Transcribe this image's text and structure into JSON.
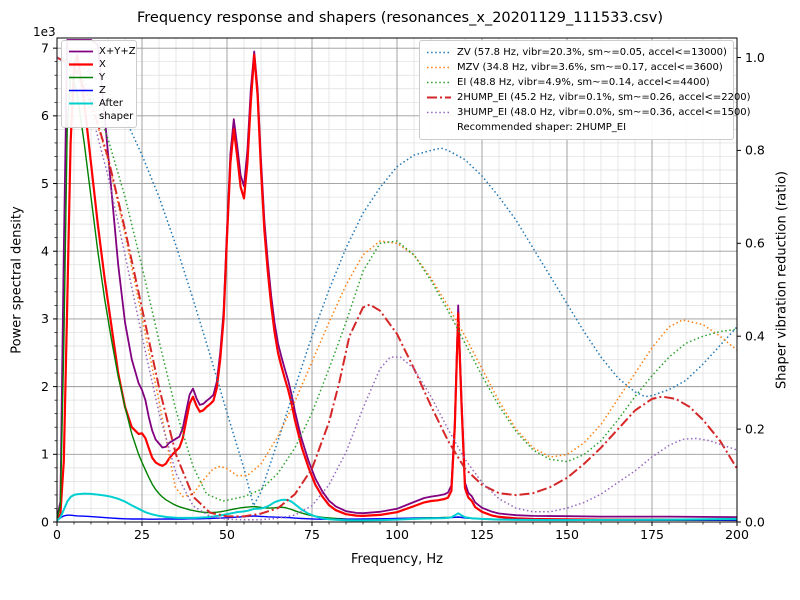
{
  "title": "Frequency response and shapers (resonances_x_20201129_111533.csv)",
  "axes": {
    "x": {
      "label": "Frequency, Hz"
    },
    "y_left": {
      "label": "Power spectral density",
      "offset_text": "1e3"
    },
    "y_right": {
      "label": "Shaper vibration reduction (ratio)"
    }
  },
  "legends": {
    "psd": {
      "entries": [
        {
          "label": "X+Y+Z",
          "series": "X+Y+Z"
        },
        {
          "label": "X",
          "series": "X"
        },
        {
          "label": "Y",
          "series": "Y"
        },
        {
          "label": "Z",
          "series": "Z"
        },
        {
          "label": "After shaper",
          "series": "After shaper"
        }
      ]
    },
    "shapers": {
      "entries": [
        {
          "label": "ZV (57.8 Hz, vibr=20.3%, sm~=0.05, accel<=13000)",
          "series": "ZV"
        },
        {
          "label": "MZV (34.8 Hz, vibr=3.6%, sm~=0.17, accel<=3600)",
          "series": "MZV"
        },
        {
          "label": "EI (48.8 Hz, vibr=4.9%, sm~=0.14, accel<=4400)",
          "series": "EI"
        },
        {
          "label": "2HUMP_EI (45.2 Hz, vibr=0.1%, sm~=0.26, accel<=2200)",
          "series": "2HUMP_EI"
        },
        {
          "label": "3HUMP_EI (48.0 Hz, vibr=0.0%, sm~=0.36, accel<=1500)",
          "series": "3HUMP_EI"
        }
      ],
      "note": "Recommended shaper: 2HUMP_EI"
    }
  },
  "chart_data": {
    "type": "line",
    "title": "Frequency response and shapers (resonances_x_20201129_111533.csv)",
    "xlabel": "Frequency, Hz",
    "ylabel_left": "Power spectral density",
    "ylabel_right": "Shaper vibration reduction (ratio)",
    "xlim": [
      0,
      200
    ],
    "ylim_left": [
      0,
      7150
    ],
    "ylim_right": [
      0,
      1.042
    ],
    "xticks": [
      0,
      25,
      50,
      75,
      100,
      125,
      150,
      175,
      200
    ],
    "xticklabels": [
      "0",
      "25",
      "50",
      "75",
      "100",
      "125",
      "150",
      "175",
      "200"
    ],
    "yticks_left": [
      0,
      1000,
      2000,
      3000,
      4000,
      5000,
      6000,
      7000
    ],
    "yticklabels_left": [
      "0",
      "1",
      "2",
      "3",
      "4",
      "5",
      "6",
      "7"
    ],
    "y_left_offset_text": "1e3",
    "yticks_right": [
      0,
      0.2,
      0.4,
      0.6,
      0.8,
      1.0
    ],
    "yticklabels_right": [
      "0.0",
      "0.2",
      "0.4",
      "0.6",
      "0.8",
      "1.0"
    ],
    "grid": {
      "major_color": "#999999",
      "minor_color": "#dddddd",
      "on": true
    },
    "minor": {
      "x_step": 5,
      "y_left_step": 200
    },
    "legend_positions": {
      "psd": "upper left",
      "shapers": "upper right"
    },
    "psd_x": [
      0,
      1,
      2,
      3,
      4,
      5,
      6,
      8,
      10,
      12,
      14,
      16,
      18,
      20,
      22,
      24,
      25,
      26,
      27,
      28,
      29,
      30,
      31,
      32,
      33,
      34,
      35,
      36,
      37,
      38,
      39,
      40,
      41,
      42,
      43,
      44,
      45,
      46,
      47,
      48,
      49,
      50,
      51,
      52,
      53,
      54,
      55,
      56,
      57,
      58,
      59,
      60,
      61,
      62,
      63,
      64,
      65,
      66,
      67,
      68,
      69,
      70,
      71,
      72,
      74,
      76,
      78,
      80,
      82,
      85,
      88,
      90,
      95,
      100,
      105,
      108,
      110,
      112,
      114,
      115,
      116,
      117,
      118,
      119,
      120,
      121,
      122,
      123,
      125,
      128,
      130,
      135,
      140,
      150,
      160,
      170,
      180,
      190,
      200
    ],
    "series": [
      {
        "name": "X+Y+Z",
        "axis": "left",
        "color": "#800080",
        "style": "solid",
        "width": 1.8,
        "y": [
          60,
          300,
          4000,
          7120,
          7120,
          7120,
          7120,
          7120,
          7120,
          7050,
          6000,
          4900,
          3800,
          2950,
          2400,
          2050,
          1950,
          1800,
          1550,
          1350,
          1220,
          1160,
          1100,
          1110,
          1170,
          1200,
          1230,
          1260,
          1390,
          1640,
          1880,
          1970,
          1830,
          1730,
          1745,
          1790,
          1830,
          1880,
          2070,
          2500,
          3110,
          4330,
          5440,
          5950,
          5560,
          5120,
          4960,
          5490,
          6390,
          6950,
          6400,
          5350,
          4450,
          3850,
          3340,
          2940,
          2640,
          2440,
          2260,
          2090,
          1880,
          1630,
          1420,
          1220,
          900,
          640,
          455,
          315,
          230,
          160,
          135,
          130,
          150,
          195,
          295,
          355,
          375,
          390,
          410,
          435,
          540,
          1480,
          3200,
          1790,
          580,
          430,
          380,
          290,
          210,
          150,
          125,
          100,
          90,
          85,
          80,
          80,
          80,
          75,
          72
        ]
      },
      {
        "name": "X",
        "axis": "left",
        "color": "#ff0000",
        "style": "solid",
        "width": 2.2,
        "y": [
          40,
          120,
          900,
          3200,
          5600,
          6700,
          6900,
          6200,
          5300,
          4400,
          3600,
          2900,
          2200,
          1700,
          1400,
          1300,
          1310,
          1240,
          1090,
          950,
          880,
          850,
          830,
          860,
          940,
          1000,
          1050,
          1100,
          1240,
          1500,
          1750,
          1850,
          1720,
          1630,
          1650,
          1700,
          1740,
          1790,
          1980,
          2400,
          3000,
          4200,
          5300,
          5800,
          5400,
          4950,
          4780,
          5300,
          6200,
          6900,
          6300,
          5200,
          4300,
          3700,
          3200,
          2800,
          2500,
          2300,
          2120,
          1950,
          1750,
          1500,
          1300,
          1100,
          800,
          550,
          380,
          250,
          175,
          115,
          95,
          90,
          105,
          145,
          235,
          290,
          310,
          320,
          340,
          360,
          460,
          1400,
          3080,
          1700,
          500,
          360,
          310,
          220,
          150,
          95,
          75,
          55,
          45,
          40,
          35,
          35,
          35,
          32,
          30
        ]
      },
      {
        "name": "Y",
        "axis": "left",
        "color": "#008000",
        "style": "solid",
        "width": 1.4,
        "y": [
          50,
          250,
          2600,
          5800,
          6600,
          6500,
          6300,
          5600,
          4800,
          4000,
          3300,
          2700,
          2150,
          1700,
          1300,
          1000,
          880,
          770,
          660,
          560,
          480,
          420,
          370,
          330,
          300,
          270,
          245,
          225,
          210,
          195,
          180,
          170,
          160,
          150,
          145,
          140,
          140,
          140,
          145,
          150,
          160,
          170,
          180,
          190,
          200,
          210,
          215,
          220,
          225,
          228,
          222,
          215,
          210,
          205,
          205,
          210,
          215,
          218,
          212,
          200,
          185,
          165,
          148,
          132,
          105,
          85,
          70,
          60,
          52,
          45,
          42,
          42,
          45,
          50,
          58,
          62,
          63,
          64,
          66,
          67,
          68,
          70,
          72,
          68,
          62,
          58,
          55,
          52,
          48,
          43,
          40,
          35,
          32,
          30,
          28,
          28,
          27,
          26,
          25
        ]
      },
      {
        "name": "Z",
        "axis": "left",
        "color": "#0000ff",
        "style": "solid",
        "width": 1.4,
        "y": [
          20,
          60,
          90,
          100,
          100,
          95,
          90,
          85,
          80,
          72,
          65,
          58,
          52,
          48,
          45,
          44,
          44,
          43,
          42,
          42,
          42,
          43,
          43,
          44,
          44,
          44,
          44,
          45,
          45,
          46,
          47,
          48,
          48,
          48,
          49,
          50,
          52,
          54,
          56,
          58,
          61,
          64,
          67,
          70,
          73,
          76,
          79,
          82,
          85,
          88,
          86,
          83,
          80,
          77,
          75,
          73,
          71,
          69,
          67,
          65,
          62,
          58,
          55,
          52,
          47,
          43,
          41,
          40,
          40,
          41,
          43,
          45,
          48,
          52,
          58,
          60,
          60,
          61,
          63,
          64,
          66,
          70,
          74,
          68,
          60,
          56,
          53,
          50,
          46,
          42,
          40,
          37,
          35,
          33,
          31,
          30,
          30,
          29,
          28
        ]
      },
      {
        "name": "After shaper",
        "axis": "left",
        "color": "#00cfcf",
        "style": "solid",
        "width": 2.0,
        "y": [
          20,
          70,
          180,
          300,
          370,
          400,
          410,
          420,
          415,
          405,
          392,
          372,
          342,
          302,
          245,
          195,
          170,
          145,
          128,
          112,
          100,
          90,
          82,
          76,
          70,
          66,
          62,
          60,
          60,
          60,
          60,
          61,
          63,
          65,
          68,
          71,
          75,
          81,
          88,
          96,
          105,
          116,
          126,
          136,
          146,
          152,
          156,
          166,
          180,
          194,
          196,
          200,
          212,
          232,
          262,
          292,
          312,
          326,
          330,
          324,
          300,
          262,
          222,
          182,
          122,
          82,
          56,
          42,
          33,
          26,
          23,
          23,
          28,
          36,
          46,
          51,
          53,
          55,
          58,
          60,
          70,
          98,
          128,
          98,
          70,
          62,
          56,
          52,
          46,
          39,
          36,
          31,
          29,
          28,
          31,
          33,
          36,
          41,
          46
        ]
      },
      {
        "name": "ZV",
        "axis": "right",
        "color": "#1f77b4",
        "style": "dotted",
        "width": 1.5,
        "x": [
          0,
          5,
          10,
          15,
          20,
          25,
          30,
          35,
          40,
          45,
          50,
          55,
          57.8,
          60,
          65,
          70,
          75,
          80,
          85,
          90,
          95,
          100,
          105,
          110,
          113,
          115,
          120,
          125,
          130,
          135,
          140,
          145,
          150,
          155,
          160,
          165,
          170,
          173,
          175,
          180,
          185,
          190,
          195,
          200
        ],
        "y": [
          1.0,
          0.99,
          0.965,
          0.925,
          0.87,
          0.79,
          0.7,
          0.595,
          0.48,
          0.36,
          0.235,
          0.115,
          0.035,
          0.065,
          0.175,
          0.29,
          0.4,
          0.5,
          0.59,
          0.665,
          0.72,
          0.765,
          0.79,
          0.8,
          0.805,
          0.8,
          0.78,
          0.745,
          0.7,
          0.65,
          0.59,
          0.53,
          0.47,
          0.41,
          0.355,
          0.31,
          0.28,
          0.27,
          0.272,
          0.285,
          0.305,
          0.34,
          0.38,
          0.42
        ]
      },
      {
        "name": "MZV",
        "axis": "right",
        "color": "#ff7f0e",
        "style": "dotted",
        "width": 1.5,
        "x": [
          0,
          5,
          10,
          15,
          20,
          25,
          30,
          34.8,
          37,
          40,
          43,
          46,
          48,
          50,
          53,
          56,
          60,
          65,
          70,
          75,
          80,
          85,
          90,
          95,
          100,
          105,
          110,
          115,
          120,
          125,
          130,
          135,
          140,
          145,
          150,
          155,
          160,
          165,
          170,
          175,
          180,
          184,
          190,
          195,
          200
        ],
        "y": [
          1.0,
          0.975,
          0.9,
          0.78,
          0.62,
          0.44,
          0.26,
          0.075,
          0.055,
          0.06,
          0.09,
          0.115,
          0.12,
          0.115,
          0.1,
          0.1,
          0.125,
          0.185,
          0.26,
          0.345,
          0.43,
          0.51,
          0.575,
          0.605,
          0.6,
          0.575,
          0.525,
          0.465,
          0.4,
          0.33,
          0.26,
          0.2,
          0.16,
          0.14,
          0.145,
          0.17,
          0.21,
          0.265,
          0.32,
          0.375,
          0.42,
          0.435,
          0.425,
          0.4,
          0.37
        ]
      },
      {
        "name": "EI",
        "axis": "right",
        "color": "#2ca02c",
        "style": "dotted",
        "width": 1.5,
        "x": [
          0,
          5,
          10,
          15,
          20,
          25,
          30,
          35,
          40,
          44,
          48.8,
          52,
          55,
          60,
          65,
          70,
          75,
          80,
          85,
          90,
          95,
          100,
          105,
          110,
          115,
          120,
          125,
          130,
          135,
          140,
          145,
          150,
          155,
          160,
          165,
          170,
          175,
          180,
          185,
          190,
          195,
          200
        ],
        "y": [
          1.0,
          0.985,
          0.925,
          0.825,
          0.7,
          0.55,
          0.39,
          0.24,
          0.12,
          0.06,
          0.045,
          0.05,
          0.055,
          0.07,
          0.105,
          0.16,
          0.235,
          0.33,
          0.43,
          0.54,
          0.6,
          0.605,
          0.575,
          0.52,
          0.455,
          0.385,
          0.315,
          0.25,
          0.195,
          0.155,
          0.135,
          0.13,
          0.145,
          0.175,
          0.22,
          0.27,
          0.315,
          0.355,
          0.385,
          0.4,
          0.41,
          0.415
        ]
      },
      {
        "name": "2HUMP_EI",
        "axis": "right",
        "color": "#d62728",
        "style": "dashdot",
        "width": 2.0,
        "x": [
          0,
          5,
          10,
          15,
          20,
          25,
          30,
          35,
          40,
          45,
          50,
          55,
          60,
          65,
          70,
          75,
          80,
          83,
          86,
          90,
          92,
          95,
          100,
          105,
          110,
          115,
          120,
          125,
          130,
          135,
          140,
          145,
          150,
          155,
          160,
          165,
          170,
          175,
          178,
          182,
          186,
          190,
          195,
          200
        ],
        "y": [
          1.0,
          0.98,
          0.905,
          0.785,
          0.63,
          0.46,
          0.29,
          0.145,
          0.055,
          0.02,
          0.012,
          0.012,
          0.018,
          0.03,
          0.06,
          0.115,
          0.215,
          0.3,
          0.4,
          0.462,
          0.468,
          0.455,
          0.405,
          0.33,
          0.25,
          0.175,
          0.115,
          0.08,
          0.062,
          0.058,
          0.062,
          0.075,
          0.095,
          0.125,
          0.16,
          0.2,
          0.24,
          0.265,
          0.27,
          0.265,
          0.248,
          0.22,
          0.175,
          0.115
        ]
      },
      {
        "name": "3HUMP_EI",
        "axis": "right",
        "color": "#9467bd",
        "style": "dotted",
        "width": 1.5,
        "x": [
          0,
          5,
          10,
          15,
          20,
          25,
          30,
          35,
          40,
          45,
          50,
          55,
          60,
          65,
          70,
          75,
          80,
          85,
          90,
          95,
          98,
          101,
          105,
          110,
          115,
          120,
          125,
          130,
          135,
          140,
          145,
          150,
          155,
          160,
          165,
          170,
          175,
          180,
          184,
          188,
          192,
          196,
          200
        ],
        "y": [
          1.0,
          0.975,
          0.885,
          0.745,
          0.575,
          0.4,
          0.235,
          0.105,
          0.035,
          0.012,
          0.006,
          0.005,
          0.005,
          0.008,
          0.015,
          0.035,
          0.08,
          0.15,
          0.245,
          0.33,
          0.355,
          0.355,
          0.33,
          0.27,
          0.2,
          0.135,
          0.085,
          0.05,
          0.03,
          0.022,
          0.022,
          0.03,
          0.042,
          0.06,
          0.085,
          0.11,
          0.14,
          0.165,
          0.178,
          0.18,
          0.175,
          0.165,
          0.155
        ]
      }
    ]
  }
}
